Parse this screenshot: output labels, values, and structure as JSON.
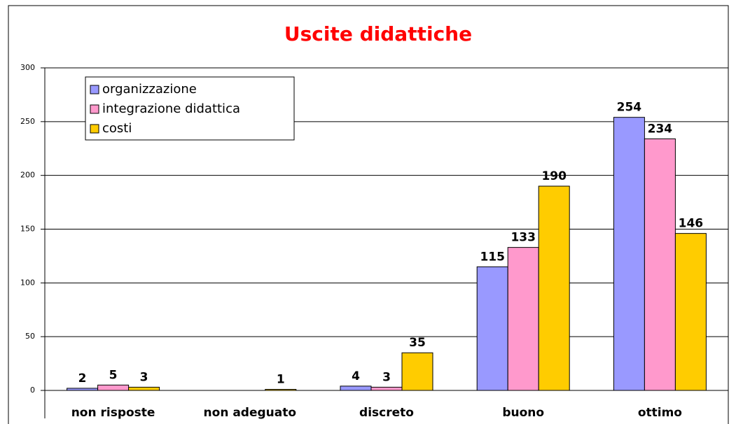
{
  "chart_data": {
    "type": "bar",
    "title": "Uscite didattiche",
    "categories": [
      "non risposte",
      "non adeguato",
      "discreto",
      "buono",
      "ottimo"
    ],
    "series": [
      {
        "name": "organizzazione",
        "color": "#9999ff",
        "values": [
          2,
          0,
          4,
          115,
          254
        ]
      },
      {
        "name": "integrazione didattica",
        "color": "#ff99cc",
        "values": [
          5,
          0,
          3,
          133,
          234
        ]
      },
      {
        "name": "costi",
        "color": "#ffcc00",
        "values": [
          3,
          1,
          35,
          190,
          146
        ]
      }
    ],
    "ylim": [
      0,
      300
    ],
    "yticks": [
      0,
      50,
      100,
      150,
      200,
      250,
      300
    ],
    "grid": true,
    "legend": "top-left"
  }
}
